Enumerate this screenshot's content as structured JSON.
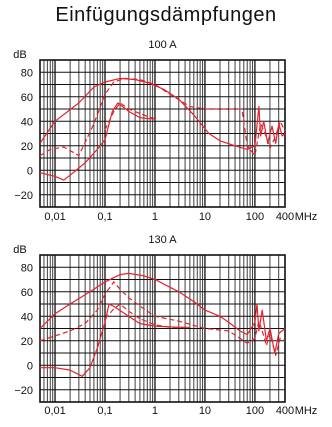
{
  "title": "Einfügungsdämpfungen",
  "curve_color": "#e8202a",
  "chart_data": [
    {
      "type": "line",
      "subtitle": "100 A",
      "ylabel": "dB",
      "xlabel": "MHz",
      "xscale": "log",
      "xlim": [
        0.005,
        400
      ],
      "ylim": [
        -30,
        90
      ],
      "grid": true,
      "y_ticks": [
        80,
        60,
        40,
        20,
        0,
        -20
      ],
      "x_ticks": [
        {
          "value": 0.01,
          "label": "0,01"
        },
        {
          "value": 0.1,
          "label": "0,1"
        },
        {
          "value": 1,
          "label": "1"
        },
        {
          "value": 10,
          "label": "10"
        },
        {
          "value": 100,
          "label": "100"
        },
        {
          "value": 400,
          "label": "400"
        }
      ],
      "series": [
        {
          "style": "solid",
          "points": [
            [
              0.005,
              22
            ],
            [
              0.01,
              40
            ],
            [
              0.03,
              55
            ],
            [
              0.06,
              68
            ],
            [
              0.1,
              72
            ],
            [
              0.2,
              75
            ],
            [
              0.4,
              74
            ],
            [
              0.8,
              71
            ],
            [
              1.5,
              66
            ],
            [
              3,
              58
            ],
            [
              6,
              45
            ],
            [
              12,
              30
            ],
            [
              20,
              24
            ],
            [
              40,
              20
            ],
            [
              70,
              17
            ],
            [
              100,
              20
            ],
            [
              120,
              52
            ],
            [
              130,
              28
            ],
            [
              150,
              40
            ],
            [
              180,
              22
            ],
            [
              220,
              36
            ],
            [
              260,
              22
            ],
            [
              300,
              38
            ],
            [
              350,
              28
            ],
            [
              400,
              30
            ]
          ]
        },
        {
          "style": "dashed",
          "points": [
            [
              0.005,
              12
            ],
            [
              0.008,
              17
            ],
            [
              0.015,
              19
            ],
            [
              0.03,
              12
            ],
            [
              0.06,
              38
            ],
            [
              0.1,
              62
            ],
            [
              0.15,
              72
            ],
            [
              0.25,
              75
            ],
            [
              0.5,
              74
            ],
            [
              1,
              70
            ],
            [
              2,
              62
            ],
            [
              5,
              52
            ],
            [
              10,
              50
            ],
            [
              20,
              50
            ],
            [
              40,
              50
            ],
            [
              55,
              50
            ],
            [
              70,
              20
            ],
            [
              100,
              12
            ],
            [
              130,
              38
            ],
            [
              160,
              30
            ],
            [
              200,
              18
            ],
            [
              260,
              28
            ],
            [
              320,
              40
            ],
            [
              400,
              32
            ]
          ]
        },
        {
          "style": "solid",
          "points": [
            [
              0.005,
              -2
            ],
            [
              0.01,
              -5
            ],
            [
              0.015,
              -8
            ],
            [
              0.02,
              -4
            ],
            [
              0.04,
              6
            ],
            [
              0.07,
              17
            ],
            [
              0.1,
              25
            ],
            [
              0.14,
              48
            ],
            [
              0.18,
              55
            ],
            [
              0.3,
              48
            ],
            [
              0.5,
              43
            ],
            [
              0.8,
              42
            ],
            [
              1,
              42
            ]
          ]
        },
        {
          "style": "dashed",
          "points": [
            [
              0.1,
              33
            ],
            [
              0.15,
              48
            ],
            [
              0.2,
              55
            ],
            [
              0.3,
              50
            ],
            [
              0.6,
              45
            ],
            [
              1,
              42
            ]
          ]
        }
      ]
    },
    {
      "type": "line",
      "subtitle": "130 A",
      "ylabel": "dB",
      "xlabel": "MHz",
      "xscale": "log",
      "xlim": [
        0.005,
        400
      ],
      "ylim": [
        -30,
        90
      ],
      "grid": true,
      "y_ticks": [
        80,
        60,
        40,
        20,
        0,
        -20
      ],
      "x_ticks": [
        {
          "value": 0.01,
          "label": "0,01"
        },
        {
          "value": 0.1,
          "label": "0,1"
        },
        {
          "value": 1,
          "label": "1"
        },
        {
          "value": 10,
          "label": "10"
        },
        {
          "value": 100,
          "label": "100"
        },
        {
          "value": 400,
          "label": "400"
        }
      ],
      "series": [
        {
          "style": "solid",
          "points": [
            [
              0.005,
              30
            ],
            [
              0.01,
              42
            ],
            [
              0.02,
              50
            ],
            [
              0.05,
              60
            ],
            [
              0.1,
              68
            ],
            [
              0.2,
              74
            ],
            [
              0.3,
              75
            ],
            [
              0.6,
              73
            ],
            [
              1,
              70
            ],
            [
              3,
              60
            ],
            [
              6,
              52
            ],
            [
              10,
              45
            ],
            [
              20,
              40
            ],
            [
              30,
              35
            ],
            [
              50,
              28
            ],
            [
              70,
              25
            ],
            [
              100,
              35
            ],
            [
              110,
              50
            ],
            [
              120,
              28
            ],
            [
              140,
              45
            ],
            [
              170,
              20
            ],
            [
              200,
              30
            ],
            [
              250,
              10
            ],
            [
              300,
              26
            ],
            [
              400,
              30
            ]
          ]
        },
        {
          "style": "dashed",
          "points": [
            [
              0.005,
              20
            ],
            [
              0.01,
              24
            ],
            [
              0.02,
              28
            ],
            [
              0.04,
              34
            ],
            [
              0.07,
              45
            ],
            [
              0.1,
              58
            ],
            [
              0.15,
              68
            ],
            [
              0.2,
              62
            ],
            [
              0.3,
              55
            ],
            [
              0.6,
              46
            ],
            [
              1,
              40
            ],
            [
              3,
              36
            ],
            [
              10,
              30
            ],
            [
              30,
              28
            ],
            [
              50,
              22
            ],
            [
              70,
              18
            ],
            [
              100,
              22
            ],
            [
              120,
              36
            ],
            [
              140,
              28
            ],
            [
              170,
              16
            ],
            [
              200,
              26
            ],
            [
              260,
              8
            ],
            [
              320,
              22
            ],
            [
              400,
              20
            ]
          ]
        },
        {
          "style": "solid",
          "points": [
            [
              0.005,
              -2
            ],
            [
              0.01,
              -2
            ],
            [
              0.02,
              -4
            ],
            [
              0.035,
              -9
            ],
            [
              0.05,
              -2
            ],
            [
              0.07,
              14
            ],
            [
              0.1,
              35
            ],
            [
              0.12,
              50
            ],
            [
              0.15,
              48
            ],
            [
              0.25,
              42
            ],
            [
              0.5,
              34
            ],
            [
              1,
              32
            ],
            [
              3,
              31
            ],
            [
              5,
              31
            ]
          ]
        },
        {
          "style": "dashed",
          "points": [
            [
              0.1,
              38
            ],
            [
              0.15,
              46
            ],
            [
              0.2,
              50
            ],
            [
              0.3,
              44
            ],
            [
              0.5,
              38
            ],
            [
              1,
              33
            ],
            [
              2,
              31
            ],
            [
              4,
              31
            ]
          ]
        }
      ]
    }
  ]
}
